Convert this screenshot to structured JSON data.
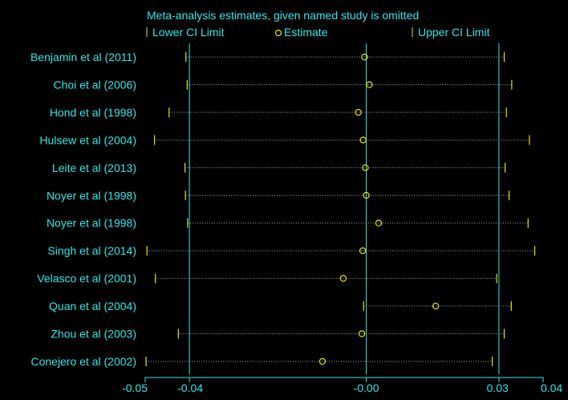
{
  "chart_data": {
    "type": "forest",
    "title": "Meta-analysis estimates, given named study is omitted",
    "legend": {
      "lower": "Lower CI Limit",
      "estimate": "Estimate",
      "upper": "Upper CI Limit"
    },
    "x_ticks": [
      {
        "label": "-0.05",
        "value": -0.05
      },
      {
        "label": "-0.04",
        "value": -0.04
      },
      {
        "label": "-0.00",
        "value": 0.0
      },
      {
        "label": "0.03",
        "value": 0.03
      },
      {
        "label": "0.04",
        "value": 0.04
      }
    ],
    "reference_lines": [
      -0.04,
      0.0,
      0.03
    ],
    "xlim": [
      -0.05,
      0.04
    ],
    "rows": [
      {
        "study": "Benjamin et al (2011)",
        "lower": -0.0408,
        "estimate": -0.0004,
        "upper": 0.0312
      },
      {
        "study": "Choi et al  (2006)",
        "lower": -0.0405,
        "estimate": 0.0007,
        "upper": 0.0329
      },
      {
        "study": "Hond et al (1998)",
        "lower": -0.0446,
        "estimate": -0.0018,
        "upper": 0.0317
      },
      {
        "study": "Hulsew et al (2004)",
        "lower": -0.0479,
        "estimate": -0.0007,
        "upper": 0.0369
      },
      {
        "study": "Leite et al (2013)",
        "lower": -0.041,
        "estimate": -0.0002,
        "upper": 0.0314
      },
      {
        "study": "Noyer et al  (1998)",
        "lower": -0.0409,
        "estimate": 0.0,
        "upper": 0.0323
      },
      {
        "study": "Noyer et al  (1998)",
        "lower": -0.0404,
        "estimate": 0.0028,
        "upper": 0.0366
      },
      {
        "study": "Singh et al  (2014)",
        "lower": -0.0496,
        "estimate": -0.0008,
        "upper": 0.0381
      },
      {
        "study": "Velasco et al (2001)",
        "lower": -0.0477,
        "estimate": -0.0052,
        "upper": 0.0295
      },
      {
        "study": "Quan et al (2004)",
        "lower": -0.0006,
        "estimate": 0.0157,
        "upper": 0.0328
      },
      {
        "study": "Zhou et al  (2003)",
        "lower": -0.0425,
        "estimate": -0.001,
        "upper": 0.0312
      },
      {
        "study": "Conejero et al  (2002)",
        "lower": -0.0498,
        "estimate": -0.0099,
        "upper": 0.0285
      }
    ]
  },
  "colors": {
    "background": "#000000",
    "text": "#33e6e6",
    "reference": "#33e6e6",
    "marker": "#e6e600",
    "ci_line": "#b0b0b0"
  }
}
